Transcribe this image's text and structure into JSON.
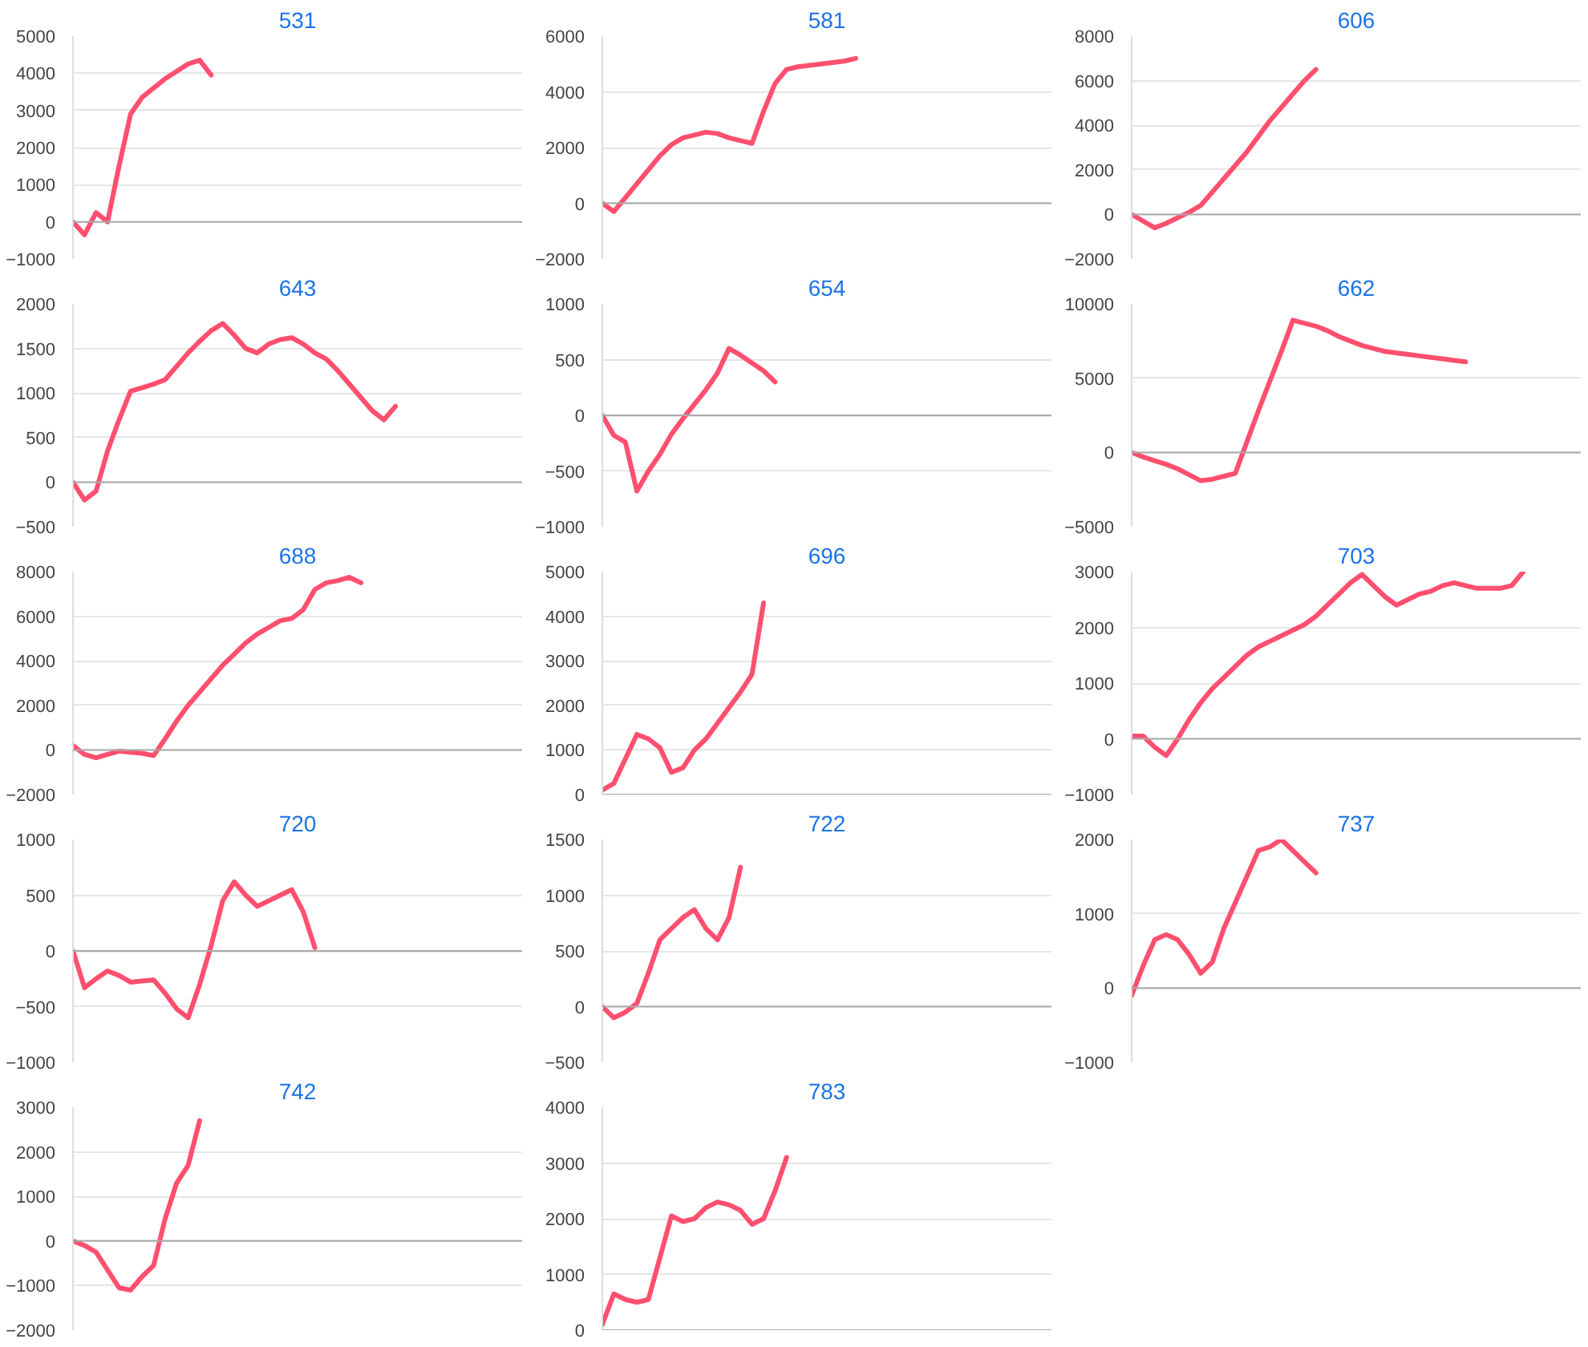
{
  "chart_data": [
    {
      "type": "line",
      "title": "531",
      "color": "#ff4f6f",
      "grid": "y",
      "tick_labels": "y",
      "ylim": [
        -1000,
        5000
      ],
      "yticks": [
        -1000,
        0,
        1000,
        2000,
        3000,
        4000,
        5000
      ],
      "ref_lines": [
        {
          "axis": "y",
          "value": 0,
          "color": "#aaaaaa"
        }
      ],
      "categories": [
        null,
        null,
        null,
        null,
        null,
        null,
        null,
        null,
        null,
        null,
        null,
        null,
        null,
        null,
        null,
        null,
        null,
        null,
        null,
        null,
        null,
        null,
        null,
        null,
        null,
        null,
        null,
        null,
        null,
        null,
        null,
        null,
        null,
        null,
        null,
        null,
        null,
        null,
        null,
        null
      ],
      "values": [
        0,
        -350,
        250,
        0,
        1500,
        2900,
        3350,
        3600,
        3850,
        4050,
        4250,
        4350,
        3950,
        null,
        null,
        null,
        null,
        null,
        null,
        null,
        null,
        null,
        null,
        null,
        null,
        null,
        null,
        null,
        null,
        null,
        null,
        null,
        null,
        null,
        null,
        null,
        null,
        null,
        null,
        null
      ]
    },
    {
      "type": "line",
      "title": "581",
      "color": "#ff4f6f",
      "grid": "y",
      "tick_labels": "y",
      "ylim": [
        -2000,
        6000
      ],
      "yticks": [
        -2000,
        0,
        2000,
        4000,
        6000
      ],
      "ref_lines": [
        {
          "axis": "y",
          "value": 0,
          "color": "#aaaaaa"
        }
      ],
      "categories": [
        null,
        null,
        null,
        null,
        null,
        null,
        null,
        null,
        null,
        null,
        null,
        null,
        null,
        null,
        null,
        null,
        null,
        null,
        null,
        null,
        null,
        null,
        null,
        null,
        null,
        null,
        null,
        null,
        null,
        null,
        null,
        null,
        null,
        null,
        null,
        null,
        null,
        null,
        null,
        null
      ],
      "values": [
        0,
        -300,
        200,
        700,
        1200,
        1700,
        2100,
        2350,
        2450,
        2550,
        2500,
        2350,
        2250,
        2150,
        3300,
        4300,
        4800,
        4900,
        4950,
        5000,
        5050,
        5100,
        5200,
        null,
        null,
        null,
        null,
        null,
        null,
        null,
        null,
        null,
        null,
        null,
        null,
        null,
        null,
        null,
        null,
        null
      ]
    },
    {
      "type": "line",
      "title": "606",
      "color": "#ff4f6f",
      "grid": "y",
      "tick_labels": "y",
      "ylim": [
        -2000,
        8000
      ],
      "yticks": [
        -2000,
        0,
        2000,
        4000,
        6000,
        8000
      ],
      "ref_lines": [
        {
          "axis": "y",
          "value": 0,
          "color": "#aaaaaa"
        }
      ],
      "categories": [
        null,
        null,
        null,
        null,
        null,
        null,
        null,
        null,
        null,
        null,
        null,
        null,
        null,
        null,
        null,
        null,
        null,
        null,
        null,
        null,
        null,
        null,
        null,
        null,
        null,
        null,
        null,
        null,
        null,
        null,
        null,
        null,
        null,
        null,
        null,
        null,
        null,
        null,
        null,
        null
      ],
      "values": [
        0,
        -300,
        -600,
        -400,
        -150,
        100,
        400,
        1000,
        1600,
        2200,
        2800,
        3500,
        4200,
        4800,
        5400,
        6000,
        6500,
        null,
        null,
        null,
        null,
        null,
        null,
        null,
        null,
        null,
        null,
        null,
        null,
        null,
        null,
        null,
        null,
        null,
        null,
        null,
        null,
        null,
        null,
        null
      ]
    },
    {
      "type": "line",
      "title": "643",
      "color": "#ff4f6f",
      "grid": "y",
      "tick_labels": "y",
      "ylim": [
        -500,
        2000
      ],
      "yticks": [
        -500,
        0,
        500,
        1000,
        1500,
        2000
      ],
      "ref_lines": [
        {
          "axis": "y",
          "value": 0,
          "color": "#aaaaaa"
        }
      ],
      "categories": [
        null,
        null,
        null,
        null,
        null,
        null,
        null,
        null,
        null,
        null,
        null,
        null,
        null,
        null,
        null,
        null,
        null,
        null,
        null,
        null,
        null,
        null,
        null,
        null,
        null,
        null,
        null,
        null,
        null,
        null,
        null,
        null,
        null,
        null,
        null,
        null,
        null,
        null,
        null,
        null
      ],
      "values": [
        0,
        -200,
        -100,
        350,
        700,
        1020,
        1060,
        1100,
        1150,
        1300,
        1450,
        1580,
        1700,
        1780,
        1650,
        1500,
        1450,
        1550,
        1600,
        1620,
        1550,
        1450,
        1380,
        1250,
        1100,
        950,
        800,
        700,
        850,
        null,
        null,
        null,
        null,
        null,
        null,
        null,
        null,
        null,
        null,
        null
      ]
    },
    {
      "type": "line",
      "title": "654",
      "color": "#ff4f6f",
      "grid": "y",
      "tick_labels": "y",
      "ylim": [
        -1000,
        1000
      ],
      "yticks": [
        -1000,
        -500,
        0,
        500,
        1000
      ],
      "ref_lines": [
        {
          "axis": "y",
          "value": 0,
          "color": "#aaaaaa"
        }
      ],
      "categories": [
        null,
        null,
        null,
        null,
        null,
        null,
        null,
        null,
        null,
        null,
        null,
        null,
        null,
        null,
        null,
        null,
        null,
        null,
        null,
        null,
        null,
        null,
        null,
        null,
        null,
        null,
        null,
        null,
        null,
        null,
        null,
        null,
        null,
        null,
        null,
        null,
        null,
        null,
        null,
        null
      ],
      "values": [
        0,
        -180,
        -240,
        -680,
        -500,
        -350,
        -170,
        -30,
        100,
        230,
        380,
        600,
        540,
        470,
        400,
        300,
        null,
        null,
        null,
        null,
        null,
        null,
        null,
        null,
        null,
        null,
        null,
        null,
        null,
        null,
        null,
        null,
        null,
        null,
        null,
        null,
        null,
        null,
        null,
        null
      ]
    },
    {
      "type": "line",
      "title": "662",
      "color": "#ff4f6f",
      "grid": "y",
      "tick_labels": "y",
      "ylim": [
        -5000,
        10000
      ],
      "yticks": [
        -5000,
        0,
        5000,
        10000
      ],
      "ref_lines": [
        {
          "axis": "y",
          "value": 0,
          "color": "#aaaaaa"
        }
      ],
      "categories": [
        null,
        null,
        null,
        null,
        null,
        null,
        null,
        null,
        null,
        null,
        null,
        null,
        null,
        null,
        null,
        null,
        null,
        null,
        null,
        null,
        null,
        null,
        null,
        null,
        null,
        null,
        null,
        null,
        null,
        null,
        null,
        null,
        null,
        null,
        null,
        null,
        null,
        null,
        null,
        null
      ],
      "values": [
        0,
        -300,
        -550,
        -800,
        -1100,
        -1500,
        -1900,
        -1800,
        -1600,
        -1400,
        700,
        2800,
        4800,
        6800,
        8900,
        8700,
        8500,
        8200,
        7800,
        7500,
        7200,
        7000,
        6800,
        6700,
        6600,
        6500,
        6400,
        6300,
        6200,
        6100,
        null,
        null,
        null,
        null,
        null,
        null,
        null,
        null,
        null,
        null
      ]
    },
    {
      "type": "line",
      "title": "688",
      "color": "#ff4f6f",
      "grid": "y",
      "tick_labels": "y",
      "ylim": [
        -2000,
        8000
      ],
      "yticks": [
        -2000,
        0,
        2000,
        4000,
        6000,
        8000
      ],
      "ref_lines": [
        {
          "axis": "y",
          "value": 0,
          "color": "#aaaaaa"
        }
      ],
      "categories": [
        null,
        null,
        null,
        null,
        null,
        null,
        null,
        null,
        null,
        null,
        null,
        null,
        null,
        null,
        null,
        null,
        null,
        null,
        null,
        null,
        null,
        null,
        null,
        null,
        null,
        null,
        null,
        null,
        null,
        null,
        null,
        null,
        null,
        null,
        null,
        null,
        null,
        null,
        null,
        null
      ],
      "values": [
        200,
        -200,
        -350,
        -200,
        -50,
        -100,
        -150,
        -250,
        500,
        1300,
        2000,
        2600,
        3200,
        3800,
        4300,
        4800,
        5200,
        5500,
        5800,
        5900,
        6300,
        7200,
        7500,
        7600,
        7750,
        7500,
        null,
        null,
        null,
        null,
        null,
        null,
        null,
        null,
        null,
        null,
        null,
        null,
        null,
        null
      ]
    },
    {
      "type": "line",
      "title": "696",
      "color": "#ff4f6f",
      "grid": "y",
      "tick_labels": "y",
      "ylim": [
        0,
        5000
      ],
      "yticks": [
        0,
        1000,
        2000,
        3000,
        4000,
        5000
      ],
      "ref_lines": [
        {
          "axis": "y",
          "value": 0,
          "color": "#aaaaaa"
        }
      ],
      "categories": [
        null,
        null,
        null,
        null,
        null,
        null,
        null,
        null,
        null,
        null,
        null,
        null,
        null,
        null,
        null,
        null,
        null,
        null,
        null,
        null,
        null,
        null,
        null,
        null,
        null,
        null,
        null,
        null,
        null,
        null,
        null,
        null,
        null,
        null,
        null,
        null,
        null,
        null,
        null,
        null
      ],
      "values": [
        100,
        250,
        800,
        1350,
        1250,
        1050,
        500,
        600,
        1000,
        1250,
        1600,
        1950,
        2300,
        2700,
        4300,
        null,
        null,
        null,
        null,
        null,
        null,
        null,
        null,
        null,
        null,
        null,
        null,
        null,
        null,
        null,
        null,
        null,
        null,
        null,
        null,
        null,
        null,
        null,
        null,
        null
      ]
    },
    {
      "type": "line",
      "title": "703",
      "color": "#ff4f6f",
      "grid": "y",
      "tick_labels": "y",
      "ylim": [
        -1000,
        3000
      ],
      "yticks": [
        -1000,
        0,
        1000,
        2000,
        3000
      ],
      "ref_lines": [
        {
          "axis": "y",
          "value": 0,
          "color": "#aaaaaa"
        }
      ],
      "categories": [
        null,
        null,
        null,
        null,
        null,
        null,
        null,
        null,
        null,
        null,
        null,
        null,
        null,
        null,
        null,
        null,
        null,
        null,
        null,
        null,
        null,
        null,
        null,
        null,
        null,
        null,
        null,
        null,
        null,
        null,
        null,
        null,
        null,
        null,
        null,
        null,
        null,
        null,
        null,
        null
      ],
      "values": [
        50,
        50,
        -150,
        -300,
        0,
        350,
        650,
        900,
        1100,
        1300,
        1500,
        1650,
        1750,
        1850,
        1950,
        2050,
        2200,
        2400,
        2600,
        2800,
        2950,
        2750,
        2550,
        2400,
        2500,
        2600,
        2650,
        2750,
        2800,
        2750,
        2700,
        2700,
        2700,
        2750,
        3000,
        null,
        null,
        null,
        null,
        null
      ]
    },
    {
      "type": "line",
      "title": "720",
      "color": "#ff4f6f",
      "grid": "y",
      "tick_labels": "y",
      "ylim": [
        -1000,
        1000
      ],
      "yticks": [
        -1000,
        -500,
        0,
        500,
        1000
      ],
      "ref_lines": [
        {
          "axis": "y",
          "value": 0,
          "color": "#aaaaaa"
        }
      ],
      "categories": [
        null,
        null,
        null,
        null,
        null,
        null,
        null,
        null,
        null,
        null,
        null,
        null,
        null,
        null,
        null,
        null,
        null,
        null,
        null,
        null,
        null,
        null,
        null,
        null,
        null,
        null,
        null,
        null,
        null,
        null,
        null,
        null,
        null,
        null,
        null,
        null,
        null,
        null,
        null,
        null
      ],
      "values": [
        0,
        -330,
        -250,
        -180,
        -220,
        -280,
        -270,
        -260,
        -380,
        -520,
        -600,
        -300,
        50,
        450,
        620,
        500,
        400,
        450,
        500,
        550,
        350,
        30,
        null,
        null,
        null,
        null,
        null,
        null,
        null,
        null,
        null,
        null,
        null,
        null,
        null,
        null,
        null,
        null,
        null,
        null
      ]
    },
    {
      "type": "line",
      "title": "722",
      "color": "#ff4f6f",
      "grid": "y",
      "tick_labels": "y",
      "ylim": [
        -500,
        1500
      ],
      "yticks": [
        -500,
        0,
        500,
        1000,
        1500
      ],
      "ref_lines": [
        {
          "axis": "y",
          "value": 0,
          "color": "#aaaaaa"
        }
      ],
      "categories": [
        null,
        null,
        null,
        null,
        null,
        null,
        null,
        null,
        null,
        null,
        null,
        null,
        null,
        null,
        null,
        null,
        null,
        null,
        null,
        null,
        null,
        null,
        null,
        null,
        null,
        null,
        null,
        null,
        null,
        null,
        null,
        null,
        null,
        null,
        null,
        null,
        null,
        null,
        null,
        null
      ],
      "values": [
        0,
        -100,
        -50,
        30,
        300,
        600,
        700,
        800,
        870,
        700,
        600,
        800,
        1250,
        null,
        null,
        null,
        null,
        null,
        null,
        null,
        null,
        null,
        null,
        null,
        null,
        null,
        null,
        null,
        null,
        null,
        null,
        null,
        null,
        null,
        null,
        null,
        null,
        null,
        null,
        null
      ]
    },
    {
      "type": "line",
      "title": "737",
      "color": "#ff4f6f",
      "grid": "y",
      "tick_labels": "y",
      "ylim": [
        -1000,
        2000
      ],
      "yticks": [
        -1000,
        0,
        1000,
        2000
      ],
      "ref_lines": [
        {
          "axis": "y",
          "value": 0,
          "color": "#aaaaaa"
        }
      ],
      "categories": [
        null,
        null,
        null,
        null,
        null,
        null,
        null,
        null,
        null,
        null,
        null,
        null,
        null,
        null,
        null,
        null,
        null,
        null,
        null,
        null,
        null,
        null,
        null,
        null,
        null,
        null,
        null,
        null,
        null,
        null,
        null,
        null,
        null,
        null,
        null,
        null,
        null,
        null,
        null,
        null
      ],
      "values": [
        -100,
        300,
        650,
        720,
        650,
        450,
        200,
        350,
        800,
        1150,
        1500,
        1850,
        1900,
        2000,
        1850,
        1700,
        1550,
        null,
        null,
        null,
        null,
        null,
        null,
        null,
        null,
        null,
        null,
        null,
        null,
        null,
        null,
        null,
        null,
        null,
        null,
        null,
        null,
        null,
        null,
        null
      ]
    },
    {
      "type": "line",
      "title": "742",
      "color": "#ff4f6f",
      "grid": "y",
      "tick_labels": "y",
      "ylim": [
        -2000,
        3000
      ],
      "yticks": [
        -2000,
        -1000,
        0,
        1000,
        2000,
        3000
      ],
      "ref_lines": [
        {
          "axis": "y",
          "value": 0,
          "color": "#aaaaaa"
        }
      ],
      "categories": [
        null,
        null,
        null,
        null,
        null,
        null,
        null,
        null,
        null,
        null,
        null,
        null,
        null,
        null,
        null,
        null,
        null,
        null,
        null,
        null,
        null,
        null,
        null,
        null,
        null,
        null,
        null,
        null,
        null,
        null,
        null,
        null,
        null,
        null,
        null,
        null,
        null,
        null,
        null,
        null
      ],
      "values": [
        0,
        -100,
        -250,
        -650,
        -1050,
        -1100,
        -800,
        -550,
        500,
        1300,
        1700,
        2700,
        null,
        null,
        null,
        null,
        null,
        null,
        null,
        null,
        null,
        null,
        null,
        null,
        null,
        null,
        null,
        null,
        null,
        null,
        null,
        null,
        null,
        null,
        null,
        null,
        null,
        null,
        null,
        null
      ]
    },
    {
      "type": "line",
      "title": "783",
      "color": "#ff4f6f",
      "grid": "y",
      "tick_labels": "y",
      "ylim": [
        0,
        4000
      ],
      "yticks": [
        0,
        1000,
        2000,
        3000,
        4000
      ],
      "ref_lines": [
        {
          "axis": "y",
          "value": 0,
          "color": "#aaaaaa"
        }
      ],
      "categories": [
        null,
        null,
        null,
        null,
        null,
        null,
        null,
        null,
        null,
        null,
        null,
        null,
        null,
        null,
        null,
        null,
        null,
        null,
        null,
        null,
        null,
        null,
        null,
        null,
        null,
        null,
        null,
        null,
        null,
        null,
        null,
        null,
        null,
        null,
        null,
        null,
        null,
        null,
        null,
        null
      ],
      "values": [
        100,
        650,
        550,
        500,
        550,
        1300,
        2050,
        1950,
        2000,
        2200,
        2300,
        2250,
        2150,
        1900,
        2000,
        2500,
        3100,
        null,
        null,
        null,
        null,
        null,
        null,
        null,
        null,
        null,
        null,
        null,
        null,
        null,
        null,
        null,
        null,
        null,
        null,
        null,
        null,
        null,
        null,
        null
      ]
    }
  ]
}
